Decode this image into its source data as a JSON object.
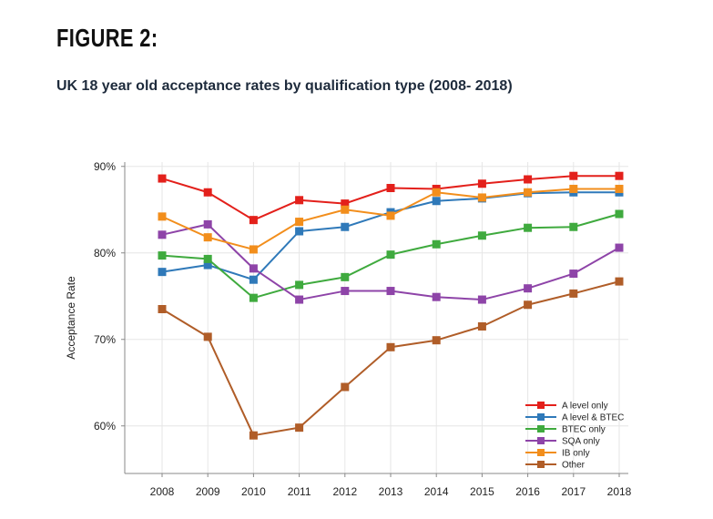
{
  "figure_label": "FIGURE 2:",
  "subtitle": "UK 18 year old acceptance rates by qualification type (2008- 2018)",
  "chart_data": {
    "type": "line",
    "title": "",
    "xlabel": "",
    "ylabel": "Acceptance Rate",
    "x": [
      "2008",
      "2009",
      "2010",
      "2011",
      "2012",
      "2013",
      "2014",
      "2015",
      "2016",
      "2017",
      "2018"
    ],
    "ylim": [
      54.5,
      90.5
    ],
    "yticks": [
      60,
      70,
      80,
      90
    ],
    "ytick_labels": [
      "60%",
      "70%",
      "80%",
      "90%"
    ],
    "grid": true,
    "legend_position": "bottom-right",
    "series": [
      {
        "name": "A level only",
        "color": "#e3201b",
        "values": [
          88.6,
          87.0,
          83.8,
          86.1,
          85.7,
          87.5,
          87.4,
          88.0,
          88.5,
          88.9,
          88.9
        ]
      },
      {
        "name": "A level & BTEC",
        "color": "#2f79b9",
        "values": [
          77.8,
          78.6,
          76.9,
          82.5,
          83.0,
          84.7,
          86.0,
          86.3,
          86.9,
          87.0,
          87.0
        ]
      },
      {
        "name": "BTEC only",
        "color": "#3faa3e",
        "values": [
          79.7,
          79.3,
          74.8,
          76.3,
          77.2,
          79.8,
          81.0,
          82.0,
          82.9,
          83.0,
          84.5
        ]
      },
      {
        "name": "SQA only",
        "color": "#8e44a8",
        "values": [
          82.1,
          83.3,
          78.2,
          74.6,
          75.6,
          75.6,
          74.9,
          74.6,
          75.9,
          77.6,
          80.6
        ]
      },
      {
        "name": "IB only",
        "color": "#f28e1c",
        "values": [
          84.2,
          81.8,
          80.4,
          83.6,
          85.0,
          84.3,
          87.0,
          86.4,
          87.0,
          87.4,
          87.4
        ]
      },
      {
        "name": "Other",
        "color": "#b05d28",
        "values": [
          73.5,
          70.3,
          58.9,
          59.8,
          64.5,
          69.1,
          69.9,
          71.5,
          74.0,
          75.3,
          76.7
        ]
      }
    ]
  }
}
